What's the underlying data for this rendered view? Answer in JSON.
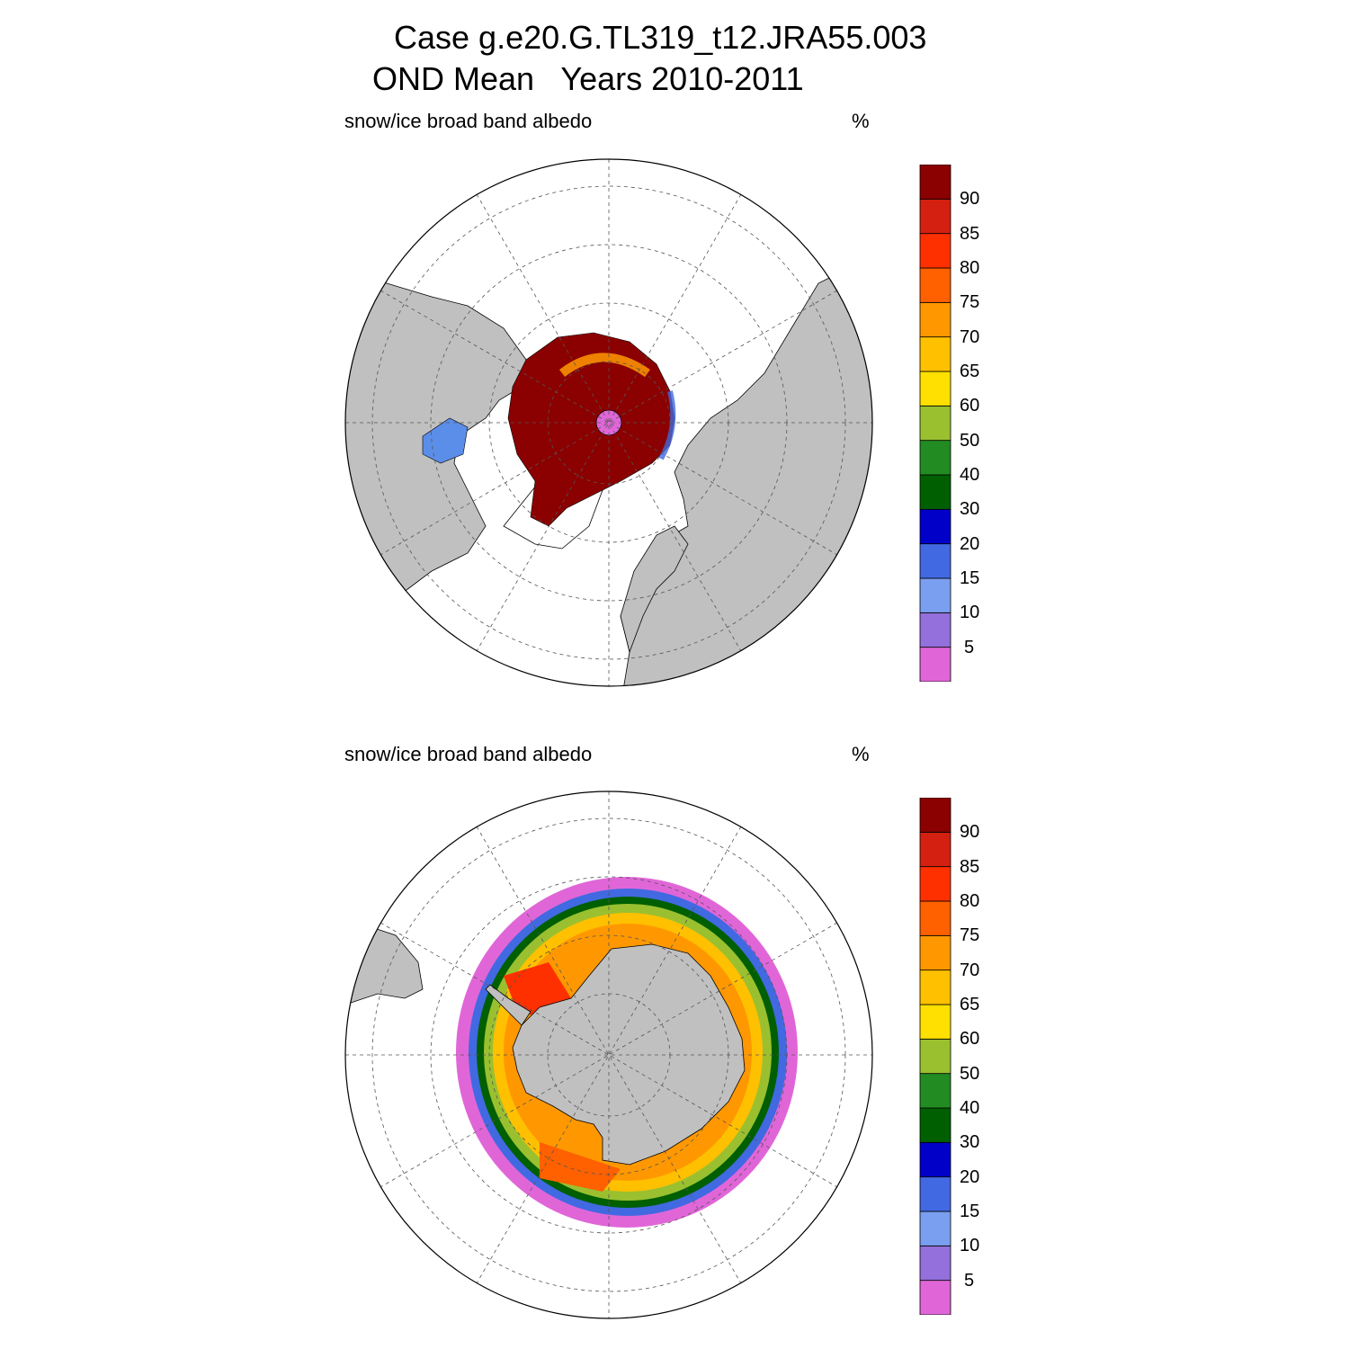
{
  "title": {
    "line1": "Case g.e20.G.TL319_t12.JRA55.003",
    "line2": "OND Mean   Years 2010-2011"
  },
  "panels": [
    {
      "id": "north",
      "label": "snow/ice broad band albedo",
      "units": "%"
    },
    {
      "id": "south",
      "label": "snow/ice broad band albedo",
      "units": "%"
    }
  ],
  "colorbar": {
    "colors": [
      "#e066d8",
      "#9370db",
      "#7b9ff0",
      "#4169e1",
      "#0000c8",
      "#005f00",
      "#228b22",
      "#9ac030",
      "#ffe000",
      "#ffc000",
      "#ff9800",
      "#ff6000",
      "#ff3000",
      "#d42010",
      "#8b0000"
    ],
    "labels": [
      "5",
      "10",
      "15",
      "20",
      "30",
      "40",
      "50",
      "60",
      "65",
      "70",
      "75",
      "80",
      "85",
      "90"
    ]
  },
  "colors": {
    "land": "#c0c0c0",
    "ocean": "#ffffff",
    "grid": "#555555"
  }
}
